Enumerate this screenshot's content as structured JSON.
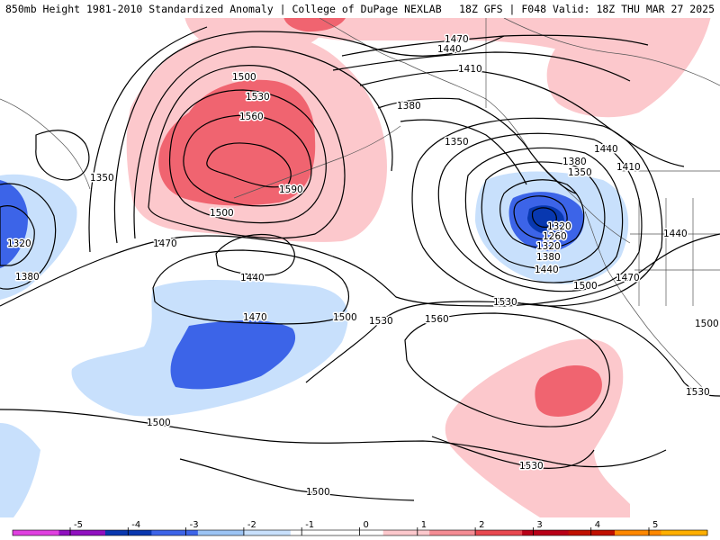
{
  "header": {
    "title": "850mb Height 1981-2010 Standardized Anomaly | College of DuPage NEXLAB",
    "run_info": "18Z GFS | F048 Valid: 18Z THU MAR 27 2025"
  },
  "colorbar": {
    "ticks": [
      "-5",
      "-4",
      "-3",
      "-2",
      "-1",
      "0",
      "1",
      "2",
      "3",
      "4",
      "5"
    ],
    "colors": [
      "#e040e0",
      "#9010c0",
      "#0838b0",
      "#3c64e8",
      "#9cc4f4",
      "#c8e0fc",
      "#ffffff",
      "#ffffff",
      "#fcc8cc",
      "#f48c94",
      "#e84850",
      "#b80018",
      "#c01000",
      "#ff8800",
      "#ffb000"
    ]
  },
  "contour_labels": [
    {
      "text": "1500"
    },
    {
      "text": "1530"
    },
    {
      "text": "1560"
    },
    {
      "text": "1590"
    },
    {
      "text": "1470"
    },
    {
      "text": "1440"
    },
    {
      "text": "1410"
    },
    {
      "text": "1380"
    },
    {
      "text": "1350"
    },
    {
      "text": "1440"
    },
    {
      "text": "1410"
    },
    {
      "text": "1380"
    },
    {
      "text": "1350"
    },
    {
      "text": "1320"
    },
    {
      "text": "1260"
    },
    {
      "text": "1320"
    },
    {
      "text": "1380"
    },
    {
      "text": "1440"
    },
    {
      "text": "1500"
    },
    {
      "text": "1470"
    },
    {
      "text": "1440"
    },
    {
      "text": "1500"
    },
    {
      "text": "1470"
    },
    {
      "text": "1440"
    },
    {
      "text": "1470"
    },
    {
      "text": "1500"
    },
    {
      "text": "1530"
    },
    {
      "text": "1530"
    },
    {
      "text": "1560"
    },
    {
      "text": "1500"
    },
    {
      "text": "1530"
    },
    {
      "text": "1500"
    },
    {
      "text": "1350"
    },
    {
      "text": "1320"
    },
    {
      "text": "1380"
    },
    {
      "text": "1500"
    },
    {
      "text": "1530"
    }
  ],
  "anomaly_colors": {
    "neg1": "#c8e0fc",
    "neg2": "#3c64e8",
    "neg3": "#0838b0",
    "pos1": "#fcc8cc",
    "pos2": "#f06470"
  }
}
